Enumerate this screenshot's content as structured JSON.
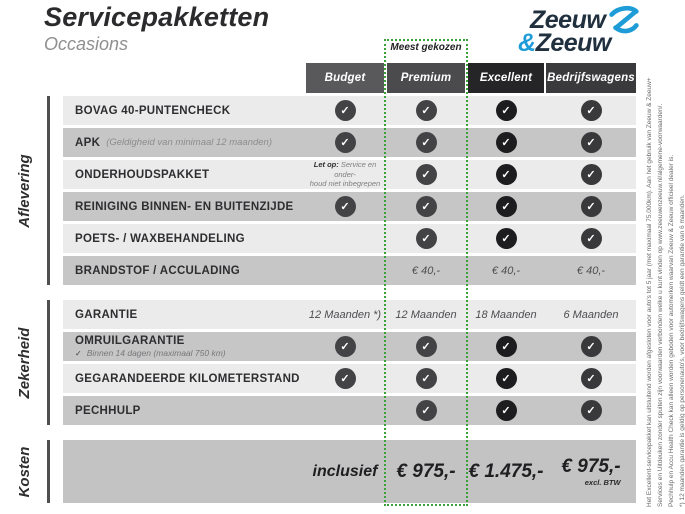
{
  "page": {
    "title": "Servicepakketten",
    "subtitle": "Occasions"
  },
  "logo": {
    "word1": "Zeeuw",
    "ampersand": "&",
    "word2": "Zeeuw"
  },
  "table": {
    "highlight_badge": "Meest gekozen",
    "columns": [
      "Budget",
      "Premium",
      "Excellent",
      "Bedrijfswagens"
    ],
    "sections": [
      {
        "label": "Aflevering",
        "rows": [
          {
            "label": "BOVAG 40-PUNTENCHECK",
            "cells": [
              "check",
              "check",
              "check",
              "check"
            ]
          },
          {
            "label": "APK",
            "note": "(Geldigheid van minimaal 12 maanden)",
            "cells": [
              "check",
              "check",
              "check",
              "check"
            ]
          },
          {
            "label": "ONDERHOUDSPAKKET",
            "budget_note": {
              "prefix": "Let op:",
              "line1": "Service en onder-",
              "line2": "houd niet inbegrepen"
            },
            "cells": [
              "",
              "check",
              "check",
              "check"
            ]
          },
          {
            "label": "REINIGING BINNEN- EN BUITENZIJDE",
            "cells": [
              "check",
              "check",
              "check",
              "check"
            ]
          },
          {
            "label": "POETS- / WAXBEHANDELING",
            "cells": [
              "",
              "check",
              "check",
              "check"
            ]
          },
          {
            "label": "BRANDSTOF / ACCULADING",
            "cells": [
              "",
              "€ 40,-",
              "€ 40,-",
              "€ 40,-"
            ]
          }
        ]
      },
      {
        "label": "Zekerheid",
        "rows": [
          {
            "label": "GARANTIE",
            "cells": [
              "12 Maanden *)",
              "12 Maanden",
              "18 Maanden",
              "6 Maanden"
            ]
          },
          {
            "label": "OMRUILGARANTIE",
            "sublabel": "Binnen 14 dagen (maximaal 750 km)",
            "subtick": "✓",
            "cells": [
              "check",
              "check",
              "check",
              "check"
            ]
          },
          {
            "label": "GEGARANDEERDE KILOMETERSTAND",
            "cells": [
              "check",
              "check",
              "check",
              "check"
            ]
          },
          {
            "label": "PECHHULP",
            "cells": [
              "",
              "check",
              "check",
              "check"
            ]
          }
        ]
      },
      {
        "label": "Kosten",
        "cost_row": {
          "cells": [
            "inclusief",
            "€ 975,-",
            "€ 1.475,-",
            "€ 975,-"
          ],
          "btw_note": "excl. BTW"
        }
      }
    ]
  },
  "footnotes": [
    "Het Excellent-servicepakket kan uitsluitend worden afgesloten voor auto's tot 5 jaar (met maximaal 75.000km). Aan het gebruik van Zeeuw & Zeeuw+",
    "Services en Uitdeuken zonder spuiten zijn voorwaarden verbonden welke u kunt vinden op www.zeeuwenzeeuw.nl/algemene-voorwaarden/.",
    "Pechhulp en Accu Health Check kan alleen worden geboden voor automerken waarvan Zeeuw & Zeeuw officieel dealer is.",
    "*) 12 maanden garantie is geldig op personenauto's, voor bedrijfswagens geldt een garantie van 6 maanden."
  ],
  "colors": {
    "accent_green": "#3ba13b",
    "brand_blue": "#1e9cd8",
    "brand_navy": "#20303f"
  }
}
